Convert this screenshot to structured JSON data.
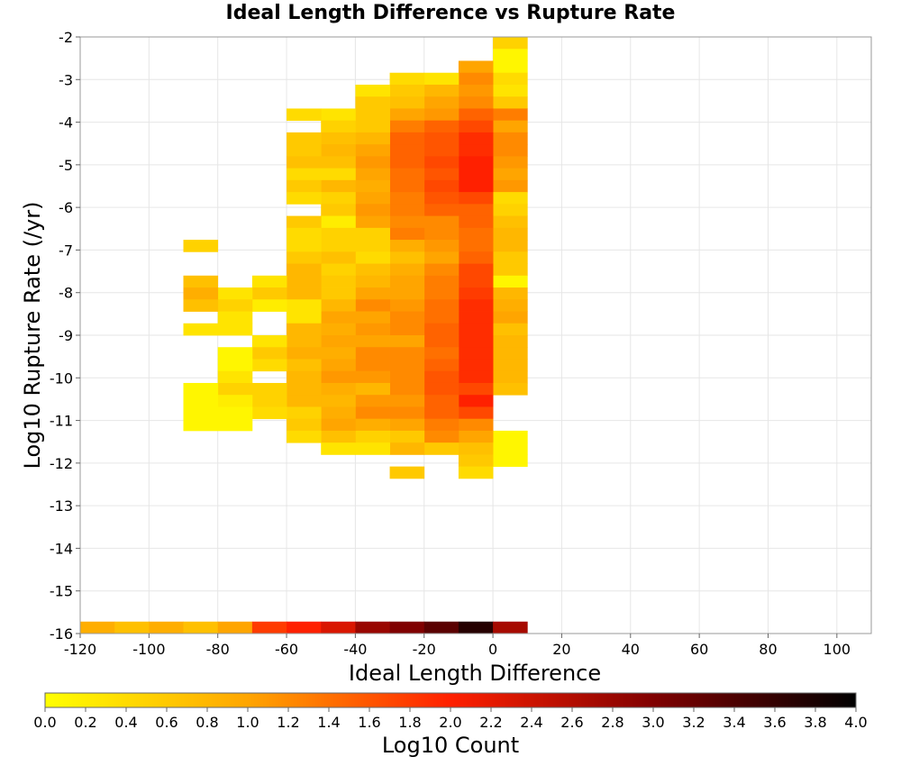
{
  "chart_data": {
    "type": "heatmap",
    "title": "Ideal Length Difference vs Rupture Rate",
    "xlabel": "Ideal Length Difference",
    "ylabel": "Log10 Rupture Rate (/yr)",
    "xlim": [
      -120,
      110
    ],
    "ylim": [
      -16,
      -2
    ],
    "x_ticks": [
      -120,
      -100,
      -80,
      -60,
      -40,
      -20,
      0,
      20,
      40,
      60,
      80,
      100
    ],
    "y_ticks": [
      -2,
      -3,
      -4,
      -5,
      -6,
      -7,
      -8,
      -9,
      -10,
      -11,
      -12,
      -13,
      -14,
      -15,
      -16
    ],
    "bin_width_x": 10,
    "bin_height_y": 0.28,
    "colorbar": {
      "label": "Log10 Count",
      "range": [
        0.0,
        4.0
      ],
      "ticks": [
        "0.0",
        "0.2",
        "0.4",
        "0.6",
        "0.8",
        "1.0",
        "1.2",
        "1.4",
        "1.6",
        "1.8",
        "2.0",
        "2.2",
        "2.4",
        "2.6",
        "2.8",
        "3.0",
        "3.2",
        "3.4",
        "3.6",
        "3.8",
        "4.0"
      ],
      "colors": [
        "#ffff00",
        "#ffa500",
        "#ff2000",
        "#800000",
        "#000000"
      ]
    },
    "note": "cells: [x_bin_start, y_bin_start, log10_count]",
    "cells": [
      [
        0,
        -2.28,
        0.5
      ],
      [
        0,
        -2.56,
        0.1
      ],
      [
        0,
        -2.84,
        0.1
      ],
      [
        0,
        -3.12,
        0.4
      ],
      [
        0,
        -3.4,
        0.3
      ],
      [
        0,
        -3.68,
        0.6
      ],
      [
        0,
        -3.96,
        1.3
      ],
      [
        0,
        -4.24,
        1.0
      ],
      [
        0,
        -4.52,
        1.2
      ],
      [
        0,
        -4.8,
        1.2
      ],
      [
        0,
        -5.08,
        1.1
      ],
      [
        0,
        -5.36,
        1.0
      ],
      [
        0,
        -5.64,
        1.1
      ],
      [
        0,
        -5.92,
        0.4
      ],
      [
        0,
        -6.2,
        0.5
      ],
      [
        0,
        -6.48,
        0.7
      ],
      [
        0,
        -6.76,
        0.8
      ],
      [
        0,
        -7.04,
        0.8
      ],
      [
        0,
        -7.32,
        0.6
      ],
      [
        0,
        -7.6,
        0.6
      ],
      [
        0,
        -7.88,
        0.1
      ],
      [
        0,
        -8.16,
        0.8
      ],
      [
        0,
        -8.44,
        0.9
      ],
      [
        0,
        -8.72,
        1.0
      ],
      [
        0,
        -9.0,
        0.7
      ],
      [
        0,
        -9.28,
        0.8
      ],
      [
        0,
        -9.56,
        0.8
      ],
      [
        0,
        -9.84,
        0.8
      ],
      [
        0,
        -10.12,
        0.8
      ],
      [
        0,
        -10.4,
        0.7
      ],
      [
        0,
        -11.52,
        0.1
      ],
      [
        0,
        -11.8,
        0.1
      ],
      [
        0,
        -12.08,
        0.1
      ],
      [
        -10,
        -2.84,
        1.0
      ],
      [
        -10,
        -3.12,
        1.2
      ],
      [
        -10,
        -3.4,
        1.1
      ],
      [
        -10,
        -3.68,
        1.2
      ],
      [
        -10,
        -3.96,
        1.5
      ],
      [
        -10,
        -4.24,
        1.7
      ],
      [
        -10,
        -4.52,
        1.9
      ],
      [
        -10,
        -4.8,
        1.9
      ],
      [
        -10,
        -5.08,
        2.0
      ],
      [
        -10,
        -5.36,
        2.0
      ],
      [
        -10,
        -5.64,
        2.0
      ],
      [
        -10,
        -5.92,
        1.7
      ],
      [
        -10,
        -6.2,
        1.5
      ],
      [
        -10,
        -6.48,
        1.5
      ],
      [
        -10,
        -6.76,
        1.4
      ],
      [
        -10,
        -7.04,
        1.4
      ],
      [
        -10,
        -7.32,
        1.5
      ],
      [
        -10,
        -7.6,
        1.7
      ],
      [
        -10,
        -7.88,
        1.7
      ],
      [
        -10,
        -8.16,
        1.8
      ],
      [
        -10,
        -8.44,
        1.9
      ],
      [
        -10,
        -8.72,
        1.9
      ],
      [
        -10,
        -9.0,
        1.9
      ],
      [
        -10,
        -9.28,
        1.9
      ],
      [
        -10,
        -9.56,
        1.9
      ],
      [
        -10,
        -9.84,
        1.9
      ],
      [
        -10,
        -10.12,
        1.9
      ],
      [
        -10,
        -10.4,
        1.7
      ],
      [
        -10,
        -10.68,
        2.0
      ],
      [
        -10,
        -10.96,
        1.7
      ],
      [
        -10,
        -11.24,
        1.2
      ],
      [
        -10,
        -11.52,
        1.0
      ],
      [
        -10,
        -11.8,
        0.7
      ],
      [
        -10,
        -12.08,
        0.6
      ],
      [
        -10,
        -12.36,
        0.4
      ],
      [
        -20,
        -3.12,
        0.3
      ],
      [
        -20,
        -3.4,
        0.8
      ],
      [
        -20,
        -3.68,
        1.0
      ],
      [
        -20,
        -3.96,
        1.1
      ],
      [
        -20,
        -4.24,
        1.5
      ],
      [
        -20,
        -4.52,
        1.6
      ],
      [
        -20,
        -4.8,
        1.6
      ],
      [
        -20,
        -5.08,
        1.7
      ],
      [
        -20,
        -5.36,
        1.6
      ],
      [
        -20,
        -5.64,
        1.7
      ],
      [
        -20,
        -5.92,
        1.6
      ],
      [
        -20,
        -6.2,
        1.5
      ],
      [
        -20,
        -6.48,
        1.2
      ],
      [
        -20,
        -6.76,
        1.2
      ],
      [
        -20,
        -7.04,
        1.1
      ],
      [
        -20,
        -7.32,
        1.0
      ],
      [
        -20,
        -7.6,
        1.2
      ],
      [
        -20,
        -7.88,
        1.3
      ],
      [
        -20,
        -8.16,
        1.3
      ],
      [
        -20,
        -8.44,
        1.4
      ],
      [
        -20,
        -8.72,
        1.4
      ],
      [
        -20,
        -9.0,
        1.5
      ],
      [
        -20,
        -9.28,
        1.5
      ],
      [
        -20,
        -9.56,
        1.4
      ],
      [
        -20,
        -9.84,
        1.5
      ],
      [
        -20,
        -10.12,
        1.6
      ],
      [
        -20,
        -10.4,
        1.6
      ],
      [
        -20,
        -10.68,
        1.5
      ],
      [
        -20,
        -10.96,
        1.5
      ],
      [
        -20,
        -11.24,
        1.3
      ],
      [
        -20,
        -11.52,
        1.2
      ],
      [
        -20,
        -11.8,
        0.6
      ],
      [
        -30,
        -3.12,
        0.4
      ],
      [
        -30,
        -3.4,
        0.6
      ],
      [
        -30,
        -3.68,
        0.7
      ],
      [
        -30,
        -3.96,
        1.0
      ],
      [
        -30,
        -4.24,
        1.3
      ],
      [
        -30,
        -4.52,
        1.5
      ],
      [
        -30,
        -4.8,
        1.5
      ],
      [
        -30,
        -5.08,
        1.5
      ],
      [
        -30,
        -5.36,
        1.4
      ],
      [
        -30,
        -5.64,
        1.4
      ],
      [
        -30,
        -5.92,
        1.3
      ],
      [
        -30,
        -6.2,
        1.3
      ],
      [
        -30,
        -6.48,
        1.2
      ],
      [
        -30,
        -6.76,
        1.3
      ],
      [
        -30,
        -7.04,
        0.9
      ],
      [
        -30,
        -7.32,
        0.7
      ],
      [
        -30,
        -7.6,
        0.9
      ],
      [
        -30,
        -7.88,
        1.0
      ],
      [
        -30,
        -8.16,
        1.0
      ],
      [
        -30,
        -8.44,
        1.1
      ],
      [
        -30,
        -8.72,
        1.2
      ],
      [
        -30,
        -9.0,
        1.2
      ],
      [
        -30,
        -9.28,
        1.0
      ],
      [
        -30,
        -9.56,
        1.2
      ],
      [
        -30,
        -9.84,
        1.2
      ],
      [
        -30,
        -10.12,
        1.2
      ],
      [
        -30,
        -10.4,
        1.2
      ],
      [
        -30,
        -10.68,
        1.1
      ],
      [
        -30,
        -10.96,
        1.2
      ],
      [
        -30,
        -11.24,
        1.0
      ],
      [
        -30,
        -11.52,
        0.6
      ],
      [
        -30,
        -11.8,
        0.8
      ],
      [
        -30,
        -12.36,
        0.6
      ],
      [
        -40,
        -3.4,
        0.3
      ],
      [
        -40,
        -3.68,
        0.6
      ],
      [
        -40,
        -3.96,
        0.6
      ],
      [
        -40,
        -4.24,
        0.6
      ],
      [
        -40,
        -4.52,
        0.8
      ],
      [
        -40,
        -4.8,
        1.0
      ],
      [
        -40,
        -5.08,
        1.1
      ],
      [
        -40,
        -5.36,
        1.0
      ],
      [
        -40,
        -5.64,
        0.9
      ],
      [
        -40,
        -5.92,
        1.0
      ],
      [
        -40,
        -6.2,
        1.1
      ],
      [
        -40,
        -6.48,
        1.0
      ],
      [
        -40,
        -6.76,
        0.5
      ],
      [
        -40,
        -7.04,
        0.5
      ],
      [
        -40,
        -7.32,
        0.4
      ],
      [
        -40,
        -7.6,
        0.7
      ],
      [
        -40,
        -7.88,
        0.8
      ],
      [
        -40,
        -8.16,
        1.0
      ],
      [
        -40,
        -8.44,
        1.2
      ],
      [
        -40,
        -8.72,
        1.0
      ],
      [
        -40,
        -9.0,
        1.1
      ],
      [
        -40,
        -9.28,
        1.0
      ],
      [
        -40,
        -9.56,
        1.2
      ],
      [
        -40,
        -9.84,
        1.2
      ],
      [
        -40,
        -10.12,
        1.1
      ],
      [
        -40,
        -10.4,
        0.8
      ],
      [
        -40,
        -10.68,
        1.1
      ],
      [
        -40,
        -10.96,
        1.2
      ],
      [
        -40,
        -11.24,
        0.9
      ],
      [
        -40,
        -11.52,
        0.5
      ],
      [
        -40,
        -11.8,
        0.3
      ],
      [
        -50,
        -3.96,
        0.3
      ],
      [
        -50,
        -4.24,
        0.5
      ],
      [
        -50,
        -4.52,
        0.7
      ],
      [
        -50,
        -4.8,
        0.8
      ],
      [
        -50,
        -5.08,
        0.7
      ],
      [
        -50,
        -5.36,
        0.4
      ],
      [
        -50,
        -5.64,
        0.8
      ],
      [
        -50,
        -5.92,
        0.5
      ],
      [
        -50,
        -6.2,
        0.6
      ],
      [
        -50,
        -6.48,
        0.2
      ],
      [
        -50,
        -6.76,
        0.5
      ],
      [
        -50,
        -7.04,
        0.5
      ],
      [
        -50,
        -7.32,
        0.7
      ],
      [
        -50,
        -7.6,
        0.5
      ],
      [
        -50,
        -7.88,
        0.6
      ],
      [
        -50,
        -8.16,
        0.6
      ],
      [
        -50,
        -8.44,
        0.8
      ],
      [
        -50,
        -8.72,
        1.0
      ],
      [
        -50,
        -9.0,
        0.9
      ],
      [
        -50,
        -9.28,
        1.0
      ],
      [
        -50,
        -9.56,
        0.9
      ],
      [
        -50,
        -9.84,
        1.0
      ],
      [
        -50,
        -10.12,
        1.1
      ],
      [
        -50,
        -10.4,
        0.9
      ],
      [
        -50,
        -10.68,
        0.8
      ],
      [
        -50,
        -10.96,
        0.9
      ],
      [
        -50,
        -11.24,
        1.0
      ],
      [
        -50,
        -11.52,
        0.7
      ],
      [
        -50,
        -11.8,
        0.3
      ],
      [
        -60,
        -3.96,
        0.4
      ],
      [
        -60,
        -4.52,
        0.6
      ],
      [
        -60,
        -4.8,
        0.6
      ],
      [
        -60,
        -5.08,
        0.7
      ],
      [
        -60,
        -5.36,
        0.4
      ],
      [
        -60,
        -5.64,
        0.6
      ],
      [
        -60,
        -5.92,
        0.4
      ],
      [
        -60,
        -6.48,
        0.6
      ],
      [
        -60,
        -6.76,
        0.4
      ],
      [
        -60,
        -7.04,
        0.4
      ],
      [
        -60,
        -7.32,
        0.6
      ],
      [
        -60,
        -7.6,
        0.8
      ],
      [
        -60,
        -7.88,
        0.8
      ],
      [
        -60,
        -8.16,
        0.8
      ],
      [
        -60,
        -8.44,
        0.3
      ],
      [
        -60,
        -8.72,
        0.3
      ],
      [
        -60,
        -9.0,
        0.8
      ],
      [
        -60,
        -9.28,
        0.8
      ],
      [
        -60,
        -9.56,
        0.9
      ],
      [
        -60,
        -9.84,
        0.7
      ],
      [
        -60,
        -10.12,
        0.8
      ],
      [
        -60,
        -10.4,
        0.8
      ],
      [
        -60,
        -10.68,
        0.8
      ],
      [
        -60,
        -10.96,
        0.5
      ],
      [
        -60,
        -11.24,
        0.6
      ],
      [
        -60,
        -11.52,
        0.4
      ],
      [
        -70,
        -7.88,
        0.3
      ],
      [
        -70,
        -8.16,
        0.6
      ],
      [
        -70,
        -8.44,
        0.2
      ],
      [
        -70,
        -9.28,
        0.3
      ],
      [
        -70,
        -9.56,
        0.6
      ],
      [
        -70,
        -9.84,
        0.4
      ],
      [
        -70,
        -10.4,
        0.5
      ],
      [
        -70,
        -10.68,
        0.5
      ],
      [
        -70,
        -10.96,
        0.4
      ],
      [
        -80,
        -8.16,
        0.3
      ],
      [
        -80,
        -8.44,
        0.5
      ],
      [
        -80,
        -8.72,
        0.3
      ],
      [
        -80,
        -9.0,
        0.3
      ],
      [
        -80,
        -9.56,
        0.1
      ],
      [
        -80,
        -9.84,
        0.1
      ],
      [
        -80,
        -10.12,
        0.3
      ],
      [
        -80,
        -10.4,
        0.5
      ],
      [
        -80,
        -10.68,
        0.2
      ],
      [
        -80,
        -10.96,
        0.1
      ],
      [
        -80,
        -11.24,
        0.1
      ],
      [
        -90,
        -7.04,
        0.5
      ],
      [
        -90,
        -7.88,
        0.7
      ],
      [
        -90,
        -8.16,
        0.9
      ],
      [
        -90,
        -8.44,
        0.7
      ],
      [
        -90,
        -9.0,
        0.3
      ],
      [
        -90,
        -10.4,
        0.1
      ],
      [
        -90,
        -10.68,
        0.1
      ],
      [
        -90,
        -10.96,
        0.1
      ],
      [
        -90,
        -11.24,
        0.1
      ],
      [
        -120,
        -16.0,
        0.9
      ],
      [
        -110,
        -16.0,
        0.7
      ],
      [
        -100,
        -16.0,
        0.9
      ],
      [
        -90,
        -16.0,
        0.7
      ],
      [
        -80,
        -16.0,
        1.0
      ],
      [
        -70,
        -16.0,
        1.8
      ],
      [
        -60,
        -16.0,
        2.0
      ],
      [
        -50,
        -16.0,
        2.3
      ],
      [
        -40,
        -16.0,
        2.8
      ],
      [
        -30,
        -16.0,
        3.0
      ],
      [
        -20,
        -16.0,
        3.3
      ],
      [
        -10,
        -16.0,
        3.7
      ],
      [
        0,
        -16.0,
        2.7
      ]
    ]
  }
}
